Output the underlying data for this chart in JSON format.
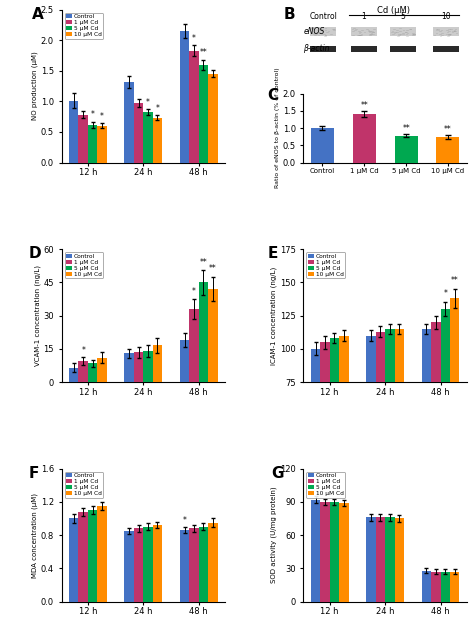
{
  "colors": {
    "blue": "#4472C4",
    "pink": "#C0346A",
    "green": "#00A850",
    "orange": "#FF8C00"
  },
  "legend_labels": [
    "Control",
    "1 μM Cd",
    "5 μM Cd",
    "10 μM Cd"
  ],
  "panel_A": {
    "title": "A",
    "ylabel": "NO production (μM)",
    "xticks": [
      "12 h",
      "24 h",
      "48 h"
    ],
    "values": {
      "control": [
        1.01,
        1.32,
        2.15
      ],
      "1uM": [
        0.78,
        0.97,
        1.83
      ],
      "5uM": [
        0.62,
        0.82,
        1.6
      ],
      "10uM": [
        0.6,
        0.73,
        1.45
      ]
    },
    "errors": {
      "control": [
        0.12,
        0.1,
        0.12
      ],
      "1uM": [
        0.06,
        0.07,
        0.09
      ],
      "5uM": [
        0.05,
        0.05,
        0.08
      ],
      "10uM": [
        0.04,
        0.04,
        0.06
      ]
    },
    "ylim": [
      0.0,
      2.5
    ],
    "yticks": [
      0.0,
      0.5,
      1.0,
      1.5,
      2.0,
      2.5
    ],
    "sig": {
      "12h": [
        "",
        "",
        "*",
        "*"
      ],
      "24h": [
        "",
        "",
        "*",
        "*"
      ],
      "48h": [
        "",
        "*",
        "**",
        ""
      ]
    }
  },
  "panel_C": {
    "title": "C",
    "ylabel": "Ratio of eNOS to β-actin (% of control)",
    "xticks": [
      "Control",
      "1 μM Cd",
      "5 μM Cd",
      "10 μM Cd"
    ],
    "values": [
      1.0,
      1.4,
      0.78,
      0.74
    ],
    "errors": [
      0.05,
      0.08,
      0.05,
      0.05
    ],
    "ylim": [
      0.0,
      2.0
    ],
    "yticks": [
      0.0,
      0.5,
      1.0,
      1.5,
      2.0
    ],
    "sig": [
      "",
      "**",
      "**",
      "**"
    ],
    "bar_colors": [
      "#4472C4",
      "#C0346A",
      "#00A850",
      "#FF8C00"
    ]
  },
  "panel_D": {
    "title": "D",
    "ylabel": "VCAM-1 concentration (ng/L)",
    "xticks": [
      "12 h",
      "24 h",
      "48 h"
    ],
    "values": {
      "control": [
        6.5,
        13.0,
        19.0
      ],
      "1uM": [
        9.5,
        13.5,
        33.0
      ],
      "5uM": [
        8.5,
        14.0,
        45.0
      ],
      "10uM": [
        11.0,
        16.5,
        42.0
      ]
    },
    "errors": {
      "control": [
        2.0,
        2.0,
        3.0
      ],
      "1uM": [
        2.0,
        2.5,
        4.5
      ],
      "5uM": [
        1.5,
        2.5,
        5.5
      ],
      "10uM": [
        2.5,
        3.5,
        5.5
      ]
    },
    "ylim": [
      0,
      60
    ],
    "yticks": [
      0,
      15,
      30,
      45,
      60
    ],
    "sig_12h": [
      "",
      "*",
      "",
      ""
    ],
    "sig_48h": [
      "",
      "*",
      "**",
      "**"
    ]
  },
  "panel_E": {
    "title": "E",
    "ylabel": "ICAM-1 concentration (ng/L)",
    "xticks": [
      "12 h",
      "24 h",
      "48 h"
    ],
    "values": {
      "control": [
        100,
        110,
        115
      ],
      "1uM": [
        105,
        113,
        120
      ],
      "5uM": [
        108,
        115,
        130
      ],
      "10uM": [
        110,
        115,
        138
      ]
    },
    "errors": {
      "control": [
        5,
        4,
        4
      ],
      "1uM": [
        5,
        4,
        5
      ],
      "5uM": [
        4,
        4,
        5
      ],
      "10uM": [
        4,
        4,
        7
      ]
    },
    "ylim": [
      75,
      175
    ],
    "yticks": [
      75,
      100,
      125,
      150,
      175
    ],
    "sig_48h": [
      "",
      "",
      "*",
      "**"
    ]
  },
  "panel_F": {
    "title": "F",
    "ylabel": "MDA concentration (μM)",
    "xticks": [
      "12 h",
      "24 h",
      "48 h"
    ],
    "values": {
      "control": [
        1.0,
        0.85,
        0.86
      ],
      "1uM": [
        1.08,
        0.88,
        0.88
      ],
      "5uM": [
        1.1,
        0.9,
        0.9
      ],
      "10uM": [
        1.15,
        0.92,
        0.95
      ]
    },
    "errors": {
      "control": [
        0.05,
        0.04,
        0.04
      ],
      "1uM": [
        0.05,
        0.04,
        0.04
      ],
      "5uM": [
        0.05,
        0.04,
        0.04
      ],
      "10uM": [
        0.05,
        0.04,
        0.05
      ]
    },
    "ylim": [
      0.0,
      1.6
    ],
    "yticks": [
      0.0,
      0.4,
      0.8,
      1.2,
      1.6
    ],
    "sig_48h": [
      "",
      "*",
      "",
      ""
    ]
  },
  "panel_G": {
    "title": "G",
    "ylabel": "SOD activity (U/mg protein)",
    "xticks": [
      "12 h",
      "24 h",
      "48 h"
    ],
    "values": {
      "control": [
        92,
        76,
        28
      ],
      "1uM": [
        90,
        76,
        27
      ],
      "5uM": [
        90,
        76,
        27
      ],
      "10uM": [
        89,
        75,
        27
      ]
    },
    "errors": {
      "control": [
        3,
        3,
        2
      ],
      "1uM": [
        3,
        3,
        2
      ],
      "5uM": [
        3,
        3,
        2
      ],
      "10uM": [
        3,
        3,
        2
      ]
    },
    "ylim": [
      0,
      120
    ],
    "yticks": [
      0,
      30,
      60,
      90,
      120
    ]
  }
}
